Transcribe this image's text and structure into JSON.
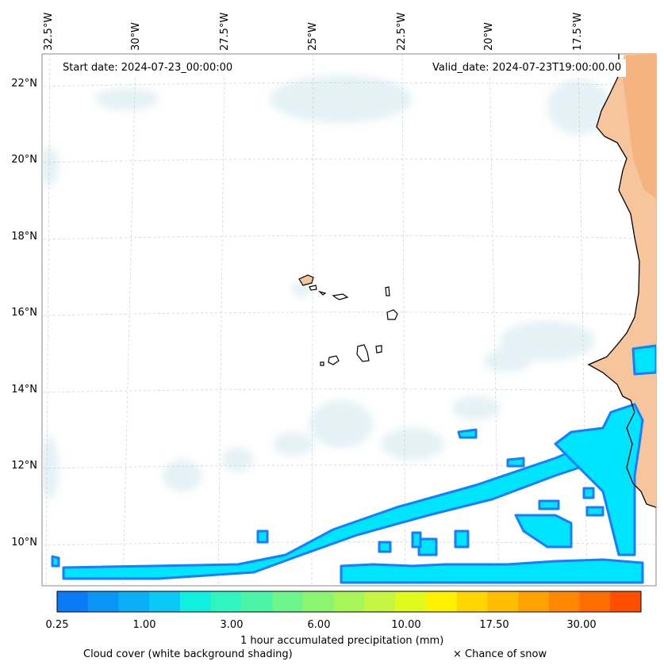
{
  "header": {
    "start_label": "Start date: 2024-07-23_00:00:00",
    "valid_label": "Valid_date: 2024-07-23T19:00:00.00"
  },
  "axes": {
    "longitude_labels": [
      "32.5°W",
      "30°W",
      "27.5°W",
      "25°W",
      "22.5°W",
      "20°W",
      "17.5°W"
    ],
    "latitude_labels": [
      "22°N",
      "20°N",
      "18°N",
      "16°N",
      "14°N",
      "12°N",
      "10°N"
    ]
  },
  "colorbar": {
    "title": "1 hour accumulated precipitation (mm)",
    "tick_labels": [
      "0.25",
      "1.00",
      "3.00",
      "6.00",
      "10.00",
      "17.50",
      "30.00"
    ],
    "colors": [
      "#0a7bf7",
      "#0a96f7",
      "#0aaff7",
      "#0ac9f7",
      "#10f0e0",
      "#2ff5c0",
      "#4cf5a5",
      "#6cf58a",
      "#8cf570",
      "#a8f55a",
      "#c4f540",
      "#e0fa20",
      "#fff200",
      "#ffd700",
      "#ffbd00",
      "#ffa200",
      "#ff8800",
      "#ff6c00",
      "#ff4e00"
    ]
  },
  "legend": {
    "cloud_label": "Cloud cover (white background shading)",
    "snow_label": "× Chance of snow"
  },
  "colors": {
    "land": "#f7c59c",
    "land_dark": "#f4a468",
    "cloud": "#cfe6ee",
    "precip": "#00e5ff",
    "precip_edge": "#1a7cff",
    "coast": "#000000"
  }
}
